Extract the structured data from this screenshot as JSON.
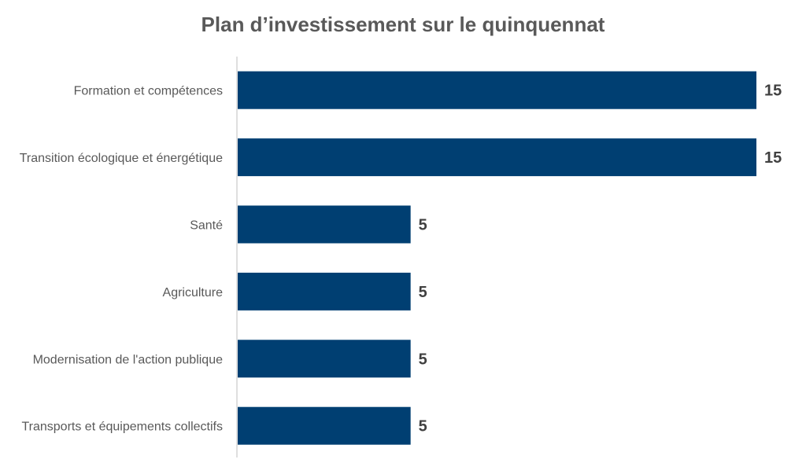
{
  "chart_data": {
    "type": "bar",
    "orientation": "horizontal",
    "title": "Plan d’investissement sur le quinquennat",
    "categories": [
      "Formation et compétences",
      "Transition écologique et énergétique",
      "Santé",
      "Agriculture",
      "Modernisation de l'action publique",
      "Transports et équipements collectifs"
    ],
    "values": [
      15,
      15,
      5,
      5,
      5,
      5
    ],
    "data_labels": [
      "15",
      "15",
      "5",
      "5",
      "5",
      "5"
    ],
    "xlim": [
      0,
      15
    ],
    "grid": false,
    "legend": "none",
    "colors": {
      "bar": "#003F72",
      "axis": "#BFBFBF",
      "text": "#595959",
      "value_text": "#404040"
    }
  }
}
